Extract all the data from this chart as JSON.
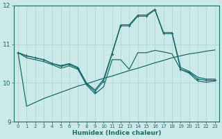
{
  "xlabel": "Humidex (Indice chaleur)",
  "bg_color": "#cce9e9",
  "line_color": "#1a6b6b",
  "grid_color": "#aad4d4",
  "xlim": [
    -0.5,
    23.5
  ],
  "ylim": [
    9,
    12
  ],
  "yticks": [
    9,
    10,
    11,
    12
  ],
  "xticks": [
    0,
    1,
    2,
    3,
    4,
    5,
    6,
    7,
    8,
    9,
    10,
    11,
    12,
    13,
    14,
    15,
    16,
    17,
    18,
    19,
    20,
    21,
    22,
    23
  ],
  "lines": [
    {
      "x": [
        0,
        1,
        2,
        3,
        4,
        5,
        6,
        7,
        8,
        9,
        10,
        11,
        12,
        13,
        14,
        15,
        16,
        17,
        18,
        19,
        20,
        21,
        22,
        23
      ],
      "y": [
        10.78,
        10.7,
        10.65,
        10.6,
        10.5,
        10.45,
        10.5,
        10.4,
        10.0,
        9.82,
        10.1,
        10.78,
        11.5,
        11.5,
        11.75,
        11.75,
        11.9,
        11.3,
        11.3,
        10.4,
        10.3,
        10.15,
        10.1,
        10.1
      ],
      "marker": null,
      "lw": 0.9
    },
    {
      "x": [
        0,
        1,
        2,
        3,
        4,
        5,
        6,
        7,
        8,
        9,
        10,
        11,
        12,
        13,
        14,
        15,
        16,
        17,
        18,
        19,
        20,
        21,
        22,
        23
      ],
      "y": [
        10.78,
        10.7,
        10.65,
        10.6,
        10.5,
        10.43,
        10.48,
        10.38,
        9.98,
        9.78,
        10.05,
        10.75,
        11.47,
        11.47,
        11.72,
        11.72,
        11.88,
        11.27,
        11.27,
        10.35,
        10.28,
        10.1,
        10.07,
        10.07
      ],
      "marker": "+",
      "lw": 0.9
    },
    {
      "x": [
        0,
        1,
        2,
        3,
        4,
        5,
        6,
        7,
        8,
        9,
        10,
        11,
        12,
        13,
        14,
        15,
        16,
        17,
        18,
        19,
        20,
        21,
        22,
        23
      ],
      "y": [
        10.78,
        10.65,
        10.6,
        10.55,
        10.47,
        10.38,
        10.44,
        10.35,
        9.95,
        9.72,
        9.9,
        10.6,
        10.6,
        10.35,
        10.78,
        10.78,
        10.84,
        10.8,
        10.75,
        10.35,
        10.25,
        10.05,
        10.02,
        10.05
      ],
      "marker": null,
      "lw": 0.9
    },
    {
      "x": [
        0,
        1,
        2,
        3,
        4,
        5,
        6,
        7,
        8,
        9,
        10,
        11,
        12,
        13,
        14,
        15,
        16,
        17,
        18,
        19,
        20,
        21,
        22,
        23
      ],
      "y": [
        10.78,
        9.4,
        9.5,
        9.6,
        9.68,
        9.76,
        9.84,
        9.92,
        9.98,
        10.05,
        10.12,
        10.18,
        10.25,
        10.32,
        10.38,
        10.45,
        10.52,
        10.58,
        10.65,
        10.7,
        10.75,
        10.78,
        10.82,
        10.85
      ],
      "marker": null,
      "lw": 0.9
    }
  ]
}
